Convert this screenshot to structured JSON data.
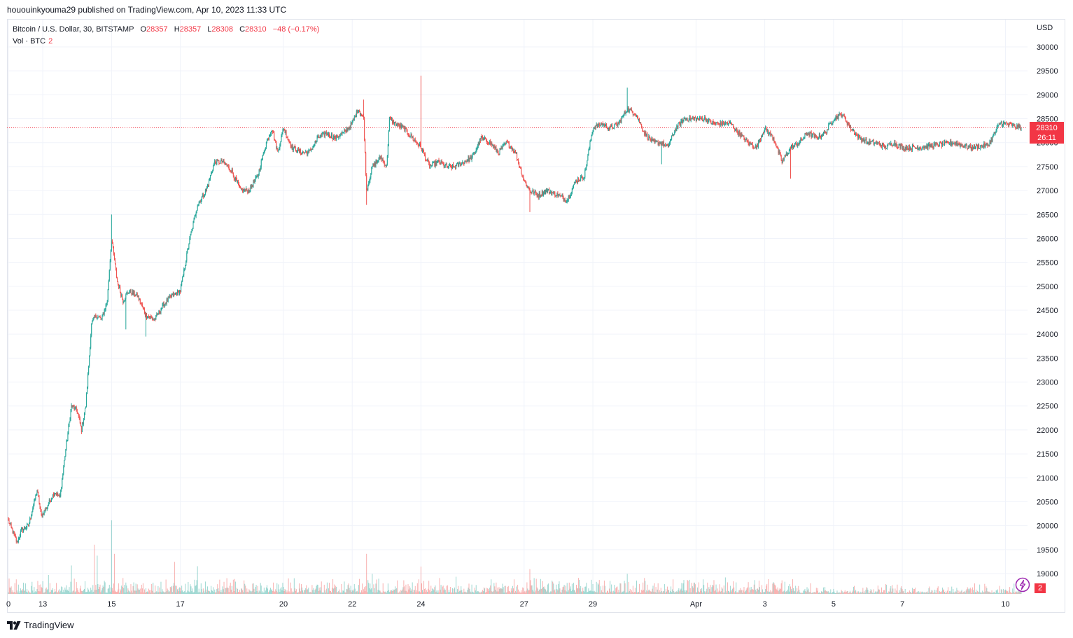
{
  "header": {
    "published_line": "hououinkyouma29 published on TradingView.com, Apr 10, 2023 11:33 UTC"
  },
  "legend": {
    "symbol": "Bitcoin / U.S. Dollar, 30, BITSTAMP",
    "open_label": "O",
    "open": "28357",
    "high_label": "H",
    "high": "28357",
    "low_label": "L",
    "low": "28308",
    "close_label": "C",
    "close": "28310",
    "change": "−48 (−0.17%)",
    "volume_label": "Vol · BTC",
    "volume_value": "2"
  },
  "price_axis": {
    "currency": "USD"
  },
  "price_badge": {
    "price": "28310",
    "countdown": "26:11"
  },
  "volume_badge": "2",
  "branding": {
    "name": "TradingView"
  },
  "colors": {
    "up": "#26a69a",
    "down": "#ef5350",
    "grid": "#f0f3fa",
    "last_price": "#f23645"
  },
  "chart_data": {
    "type": "candlestick",
    "interval": "30",
    "x_ticks": [
      "0",
      "13",
      "15",
      "17",
      "20",
      "22",
      "24",
      "27",
      "29",
      "Apr",
      "3",
      "5",
      "7",
      "10"
    ],
    "y_ticks": [
      19000,
      19500,
      20000,
      20500,
      21000,
      21500,
      22000,
      22500,
      23000,
      23500,
      24000,
      24500,
      25000,
      25500,
      26000,
      26500,
      27000,
      27500,
      28000,
      28500,
      29000,
      29500,
      30000
    ],
    "ylim": [
      18800,
      30250
    ],
    "last_price": 28310,
    "anchors": [
      [
        "2023-03-12 00:00",
        20100
      ],
      [
        "2023-03-12 06:00",
        19650
      ],
      [
        "2023-03-12 09:00",
        19900
      ],
      [
        "2023-03-12 14:00",
        20000
      ],
      [
        "2023-03-12 20:00",
        20750
      ],
      [
        "2023-03-12 23:00",
        20200
      ],
      [
        "2023-03-13 03:00",
        20400
      ],
      [
        "2023-03-13 08:00",
        20700
      ],
      [
        "2023-03-13 12:00",
        20600
      ],
      [
        "2023-03-13 16:00",
        21600
      ],
      [
        "2023-03-13 20:00",
        22500
      ],
      [
        "2023-03-14 00:00",
        22400
      ],
      [
        "2023-03-14 03:00",
        22000
      ],
      [
        "2023-03-14 06:00",
        22500
      ],
      [
        "2023-03-14 10:00",
        24200
      ],
      [
        "2023-03-14 13:00",
        24400
      ],
      [
        "2023-03-14 17:00",
        24300
      ],
      [
        "2023-03-14 21:00",
        24700
      ],
      [
        "2023-03-15 00:00",
        26000
      ],
      [
        "2023-03-15 04:00",
        25100
      ],
      [
        "2023-03-15 08:00",
        24700
      ],
      [
        "2023-03-15 12:00",
        24900
      ],
      [
        "2023-03-15 18:00",
        24800
      ],
      [
        "2023-03-16 00:00",
        24400
      ],
      [
        "2023-03-16 06:00",
        24300
      ],
      [
        "2023-03-16 12:00",
        24600
      ],
      [
        "2023-03-16 18:00",
        24800
      ],
      [
        "2023-03-17 00:00",
        24900
      ],
      [
        "2023-03-17 06:00",
        25900
      ],
      [
        "2023-03-17 12:00",
        26700
      ],
      [
        "2023-03-17 18:00",
        27000
      ],
      [
        "2023-03-18 00:00",
        27600
      ],
      [
        "2023-03-18 06:00",
        27600
      ],
      [
        "2023-03-18 12:00",
        27400
      ],
      [
        "2023-03-18 18:00",
        27000
      ],
      [
        "2023-03-19 00:00",
        27000
      ],
      [
        "2023-03-19 06:00",
        27300
      ],
      [
        "2023-03-19 12:00",
        28000
      ],
      [
        "2023-03-19 16:00",
        28300
      ],
      [
        "2023-03-19 20:00",
        27800
      ],
      [
        "2023-03-20 00:00",
        28300
      ],
      [
        "2023-03-20 06:00",
        27900
      ],
      [
        "2023-03-20 12:00",
        27800
      ],
      [
        "2023-03-20 18:00",
        27800
      ],
      [
        "2023-03-21 00:00",
        28100
      ],
      [
        "2023-03-21 06:00",
        28200
      ],
      [
        "2023-03-21 12:00",
        28100
      ],
      [
        "2023-03-21 18:00",
        28200
      ],
      [
        "2023-03-22 00:00",
        28400
      ],
      [
        "2023-03-22 04:00",
        28700
      ],
      [
        "2023-03-22 08:00",
        28500
      ],
      [
        "2023-03-22 10:00",
        27000
      ],
      [
        "2023-03-22 14:00",
        27500
      ],
      [
        "2023-03-22 20:00",
        27700
      ],
      [
        "2023-03-23 00:00",
        27500
      ],
      [
        "2023-03-23 02:00",
        28500
      ],
      [
        "2023-03-23 06:00",
        28400
      ],
      [
        "2023-03-23 12:00",
        28300
      ],
      [
        "2023-03-23 18:00",
        28100
      ],
      [
        "2023-03-24 00:00",
        27900
      ],
      [
        "2023-03-24 06:00",
        27500
      ],
      [
        "2023-03-24 12:00",
        27600
      ],
      [
        "2023-03-24 18:00",
        27500
      ],
      [
        "2023-03-25 00:00",
        27500
      ],
      [
        "2023-03-25 06:00",
        27600
      ],
      [
        "2023-03-25 12:00",
        27700
      ],
      [
        "2023-03-25 18:00",
        28100
      ],
      [
        "2023-03-26 00:00",
        28000
      ],
      [
        "2023-03-26 06:00",
        27800
      ],
      [
        "2023-03-26 12:00",
        28000
      ],
      [
        "2023-03-26 18:00",
        27800
      ],
      [
        "2023-03-27 00:00",
        27200
      ],
      [
        "2023-03-27 04:00",
        27000
      ],
      [
        "2023-03-27 10:00",
        26900
      ],
      [
        "2023-03-27 16:00",
        27000
      ],
      [
        "2023-03-28 00:00",
        26900
      ],
      [
        "2023-03-28 06:00",
        26800
      ],
      [
        "2023-03-28 12:00",
        27200
      ],
      [
        "2023-03-28 18:00",
        27300
      ],
      [
        "2023-03-29 00:00",
        28300
      ],
      [
        "2023-03-29 06:00",
        28400
      ],
      [
        "2023-03-29 12:00",
        28300
      ],
      [
        "2023-03-29 18:00",
        28400
      ],
      [
        "2023-03-30 00:00",
        28700
      ],
      [
        "2023-03-30 06:00",
        28600
      ],
      [
        "2023-03-30 12:00",
        28200
      ],
      [
        "2023-03-30 18:00",
        28000
      ],
      [
        "2023-03-31 00:00",
        28000
      ],
      [
        "2023-03-31 04:00",
        27900
      ],
      [
        "2023-03-31 10:00",
        28300
      ],
      [
        "2023-03-31 16:00",
        28500
      ],
      [
        "2023-04-01 00:00",
        28500
      ],
      [
        "2023-04-01 06:00",
        28500
      ],
      [
        "2023-04-01 12:00",
        28400
      ],
      [
        "2023-04-01 18:00",
        28400
      ],
      [
        "2023-04-02 00:00",
        28400
      ],
      [
        "2023-04-02 06:00",
        28200
      ],
      [
        "2023-04-02 12:00",
        28000
      ],
      [
        "2023-04-02 18:00",
        27900
      ],
      [
        "2023-04-03 00:00",
        28300
      ],
      [
        "2023-04-03 06:00",
        28100
      ],
      [
        "2023-04-03 12:00",
        27600
      ],
      [
        "2023-04-03 18:00",
        27900
      ],
      [
        "2023-04-04 00:00",
        28000
      ],
      [
        "2023-04-04 06:00",
        28200
      ],
      [
        "2023-04-04 12:00",
        28100
      ],
      [
        "2023-04-04 18:00",
        28200
      ],
      [
        "2023-04-05 00:00",
        28500
      ],
      [
        "2023-04-05 06:00",
        28600
      ],
      [
        "2023-04-05 12:00",
        28300
      ],
      [
        "2023-04-05 18:00",
        28100
      ],
      [
        "2023-04-06 00:00",
        28000
      ],
      [
        "2023-04-06 06:00",
        28000
      ],
      [
        "2023-04-06 12:00",
        27900
      ],
      [
        "2023-04-06 18:00",
        28000
      ],
      [
        "2023-04-07 00:00",
        27900
      ],
      [
        "2023-04-07 12:00",
        27900
      ],
      [
        "2023-04-08 00:00",
        27950
      ],
      [
        "2023-04-08 12:00",
        28000
      ],
      [
        "2023-04-09 00:00",
        27900
      ],
      [
        "2023-04-09 12:00",
        27950
      ],
      [
        "2023-04-09 20:00",
        28400
      ],
      [
        "2023-04-10 00:00",
        28400
      ],
      [
        "2023-04-10 06:00",
        28350
      ],
      [
        "2023-04-10 11:00",
        28310
      ]
    ],
    "spikes": [
      [
        "2023-03-15 00:00",
        26500
      ],
      [
        "2023-03-15 10:00",
        24100
      ],
      [
        "2023-03-16 00:00",
        23950
      ],
      [
        "2023-03-22 08:00",
        28900
      ],
      [
        "2023-03-22 10:00",
        26700
      ],
      [
        "2023-03-24 00:00",
        29400
      ],
      [
        "2023-03-27 04:00",
        26550
      ],
      [
        "2023-03-30 00:00",
        29150
      ],
      [
        "2023-03-31 00:00",
        27550
      ],
      [
        "2023-04-03 18:00",
        27250
      ]
    ],
    "volume_spikes": [
      [
        "2023-03-13 04:00",
        52
      ],
      [
        "2023-03-13 20:00",
        78
      ],
      [
        "2023-03-14 12:00",
        135
      ],
      [
        "2023-03-14 14:00",
        105
      ],
      [
        "2023-03-15 00:00",
        202
      ],
      [
        "2023-03-15 02:00",
        110
      ],
      [
        "2023-03-16 20:00",
        88
      ],
      [
        "2023-03-17 12:00",
        76
      ],
      [
        "2023-03-22 10:00",
        110
      ],
      [
        "2023-03-22 14:00",
        55
      ],
      [
        "2023-03-24 00:00",
        75
      ],
      [
        "2023-03-27 04:00",
        68
      ],
      [
        "2023-03-30 00:00",
        55
      ]
    ]
  }
}
